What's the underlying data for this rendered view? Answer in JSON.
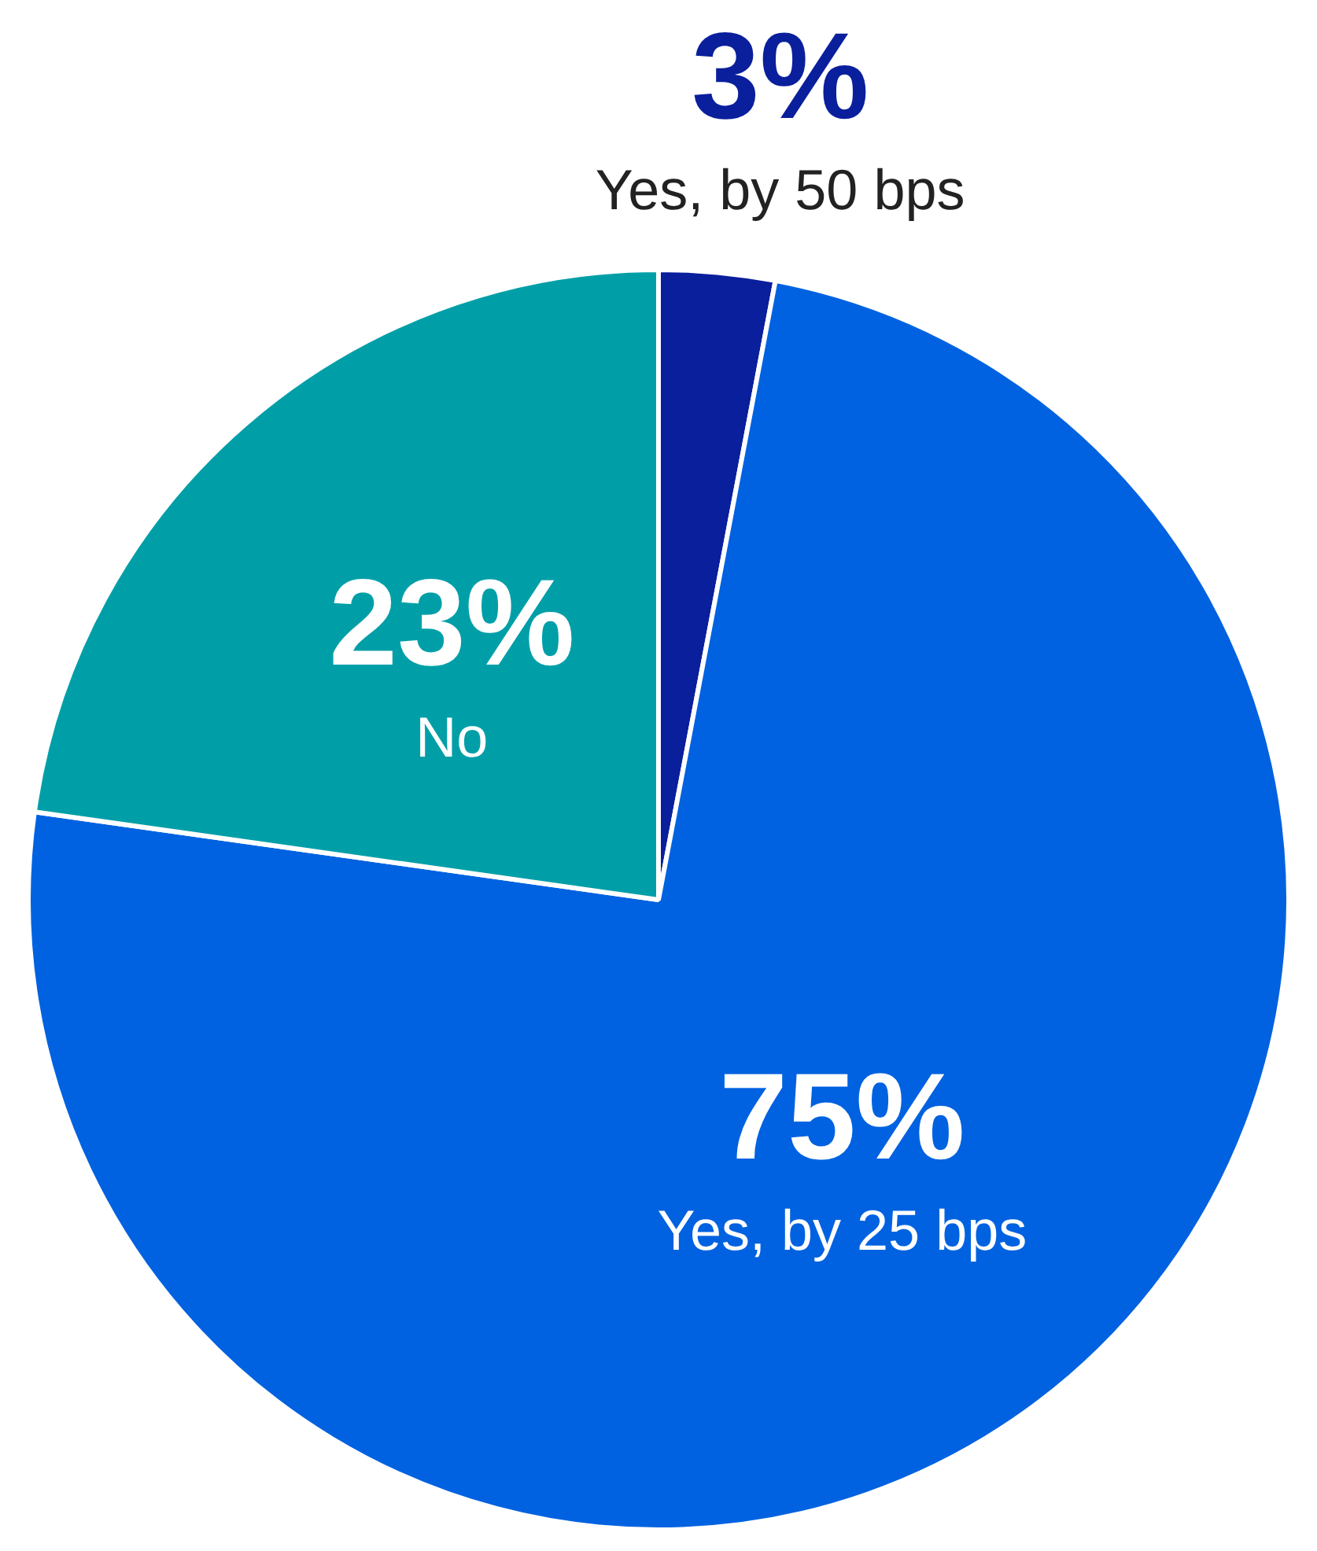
{
  "chart_data": {
    "type": "pie",
    "categories": [
      "Yes, by 50 bps",
      "Yes, by 25 bps",
      "No"
    ],
    "values": [
      3,
      75,
      23
    ],
    "value_labels": [
      "3%",
      "75%",
      "23%"
    ],
    "colors": [
      "#0a1f9c",
      "#0062e0",
      "#009fa8"
    ],
    "legend": false
  }
}
